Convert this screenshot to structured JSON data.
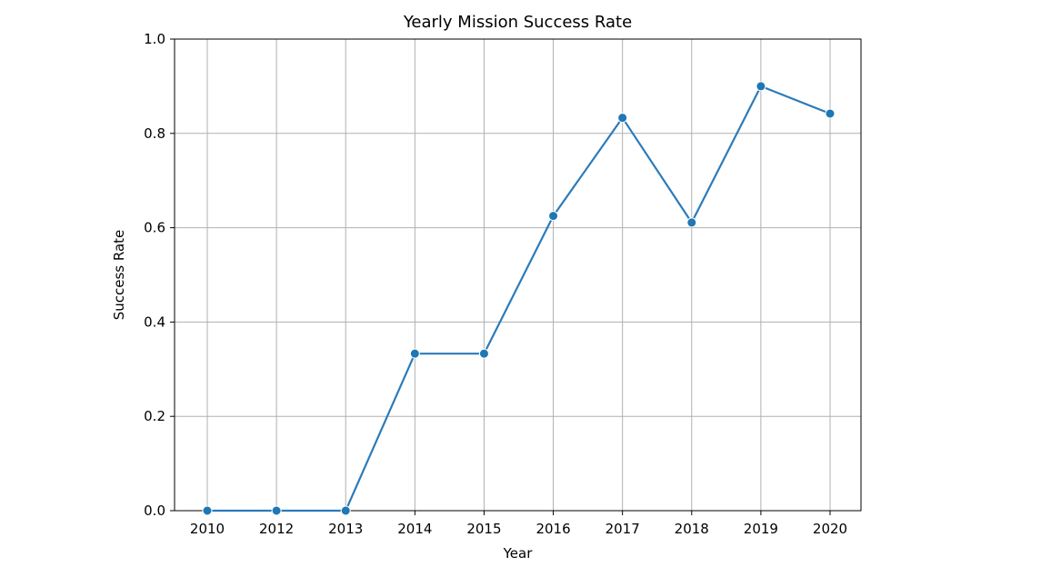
{
  "chart_data": {
    "type": "line",
    "title": "Yearly Mission Success Rate",
    "xlabel": "Year",
    "ylabel": "Success Rate",
    "categories": [
      "2010",
      "2012",
      "2013",
      "2014",
      "2015",
      "2016",
      "2017",
      "2018",
      "2019",
      "2020"
    ],
    "series": [
      {
        "values": [
          0.0,
          0.0,
          0.0,
          0.333,
          0.333,
          0.625,
          0.833,
          0.611,
          0.9,
          0.842
        ]
      }
    ],
    "ylim": [
      0.0,
      1.0
    ],
    "yticks": [
      "0.0",
      "0.2",
      "0.4",
      "0.6",
      "0.8",
      "1.0"
    ],
    "grid": true,
    "markers": true,
    "line_color": "#2b7bba",
    "marker_color": "#1f77b4",
    "grid_color": "#b0b0b0"
  }
}
